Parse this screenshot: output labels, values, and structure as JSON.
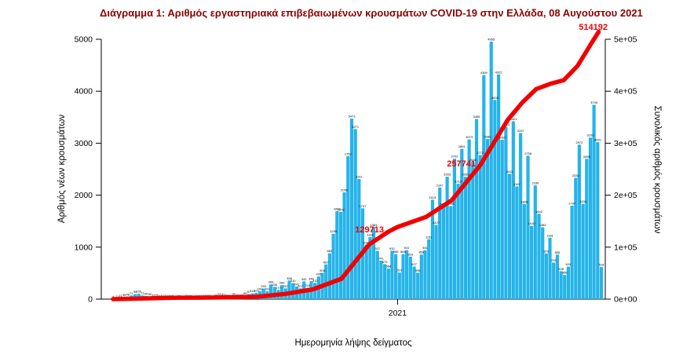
{
  "title": {
    "text": "Διάγραμμα 1: Αριθμός εργαστηριακά επιβεβαιωμένων κρουσμάτων COVID-19 στην Ελλάδα, 08 Αυγούστου 2021",
    "color": "#8b0000"
  },
  "chart_data": {
    "type": "bar+line",
    "title": "Διάγραμμα 1: Αριθμός εργαστηριακά επιβεβαιωμένων κρουσμάτων COVID-19 στην Ελλάδα, 08 Αυγούστου 2021",
    "axes": {
      "left": {
        "label": "Αριθμός νέων κρουσμάτων",
        "ticks": [
          "0",
          "1000",
          "2000",
          "3000",
          "4000",
          "5000"
        ],
        "range": [
          0,
          5000
        ]
      },
      "right": {
        "label": "Συνολικός αριθμός κρουσμάτων",
        "ticks": [
          "0e+00",
          "1e+05",
          "2e+05",
          "3e+05",
          "4e+05",
          "5e+05"
        ],
        "range": [
          0,
          500000
        ]
      },
      "x": {
        "label": "Ημερομηνία λήψης δείγματος",
        "ticks": [
          {
            "label": "2021",
            "day": 310
          }
        ]
      }
    },
    "bars": {
      "name": "Αριθμός νέων κρουσμάτων",
      "color": "#25b4ea",
      "step_days": 4,
      "values": [
        3,
        7,
        21,
        35,
        48,
        71,
        95,
        102,
        71,
        60,
        52,
        33,
        28,
        15,
        22,
        16,
        12,
        8,
        15,
        10,
        19,
        12,
        9,
        14,
        14,
        19,
        23,
        11,
        28,
        52,
        43,
        31,
        24,
        50,
        33,
        27,
        65,
        97,
        110,
        121,
        153,
        203,
        151,
        284,
        235,
        177,
        269,
        207,
        358,
        310,
        241,
        207,
        342,
        218,
        346,
        312,
        435,
        508,
        667,
        882,
        1259,
        1690,
        1678,
        2056,
        2752,
        3473,
        3271,
        2311,
        1747,
        1044,
        1194,
        1383,
        927,
        741,
        673,
        588,
        932,
        866,
        510,
        866,
        941,
        816,
        627,
        508,
        858,
        941,
        1151,
        1913,
        1427,
        2147,
        1784,
        2353,
        1790,
        2702,
        2219,
        2891,
        2353,
        3073,
        2636,
        3465,
        2772,
        4309,
        3080,
        4955,
        3833,
        4322,
        3067,
        3313,
        2411,
        3421,
        2167,
        3197,
        1829,
        2758,
        1410,
        2189,
        1642,
        1382,
        879,
        1181,
        703,
        856,
        538,
        466,
        624,
        1797,
        2334,
        2972,
        1834,
        2698,
        3109,
        3739,
        3020,
        618
      ]
    },
    "line": {
      "name": "Συνολικός αριθμός κρουσμάτων",
      "color": "#f20000",
      "points": [
        [
          0,
          3
        ],
        [
          35,
          1415
        ],
        [
          65,
          2591
        ],
        [
          96,
          2937
        ],
        [
          126,
          3511
        ],
        [
          157,
          4587
        ],
        [
          188,
          10134
        ],
        [
          218,
          18886
        ],
        [
          249,
          39251
        ],
        [
          264,
          72510
        ],
        [
          279,
          105271
        ],
        [
          300,
          129713
        ],
        [
          310,
          138850
        ],
        [
          341,
          158170
        ],
        [
          369,
          190235
        ],
        [
          400,
          257741
        ],
        [
          415,
          301103
        ],
        [
          430,
          344887
        ],
        [
          446,
          378485
        ],
        [
          461,
          404163
        ],
        [
          476,
          414033
        ],
        [
          491,
          421266
        ],
        [
          506,
          448623
        ],
        [
          522,
          494740
        ],
        [
          529,
          514192
        ]
      ]
    },
    "annotations": [
      {
        "text": "514192",
        "day": 529,
        "value": 514192
      },
      {
        "text": "257741",
        "day": 400,
        "value": 257741
      },
      {
        "text": "129713",
        "day": 300,
        "value": 129713
      }
    ],
    "colors": {
      "title": "#8b0000",
      "bars": "#25b4ea",
      "line": "#f20000",
      "annotations": "#f20000",
      "bar_labels": "#000000",
      "axis": "#000000"
    },
    "x_tick_labels_visible": [
      "2021"
    ]
  }
}
